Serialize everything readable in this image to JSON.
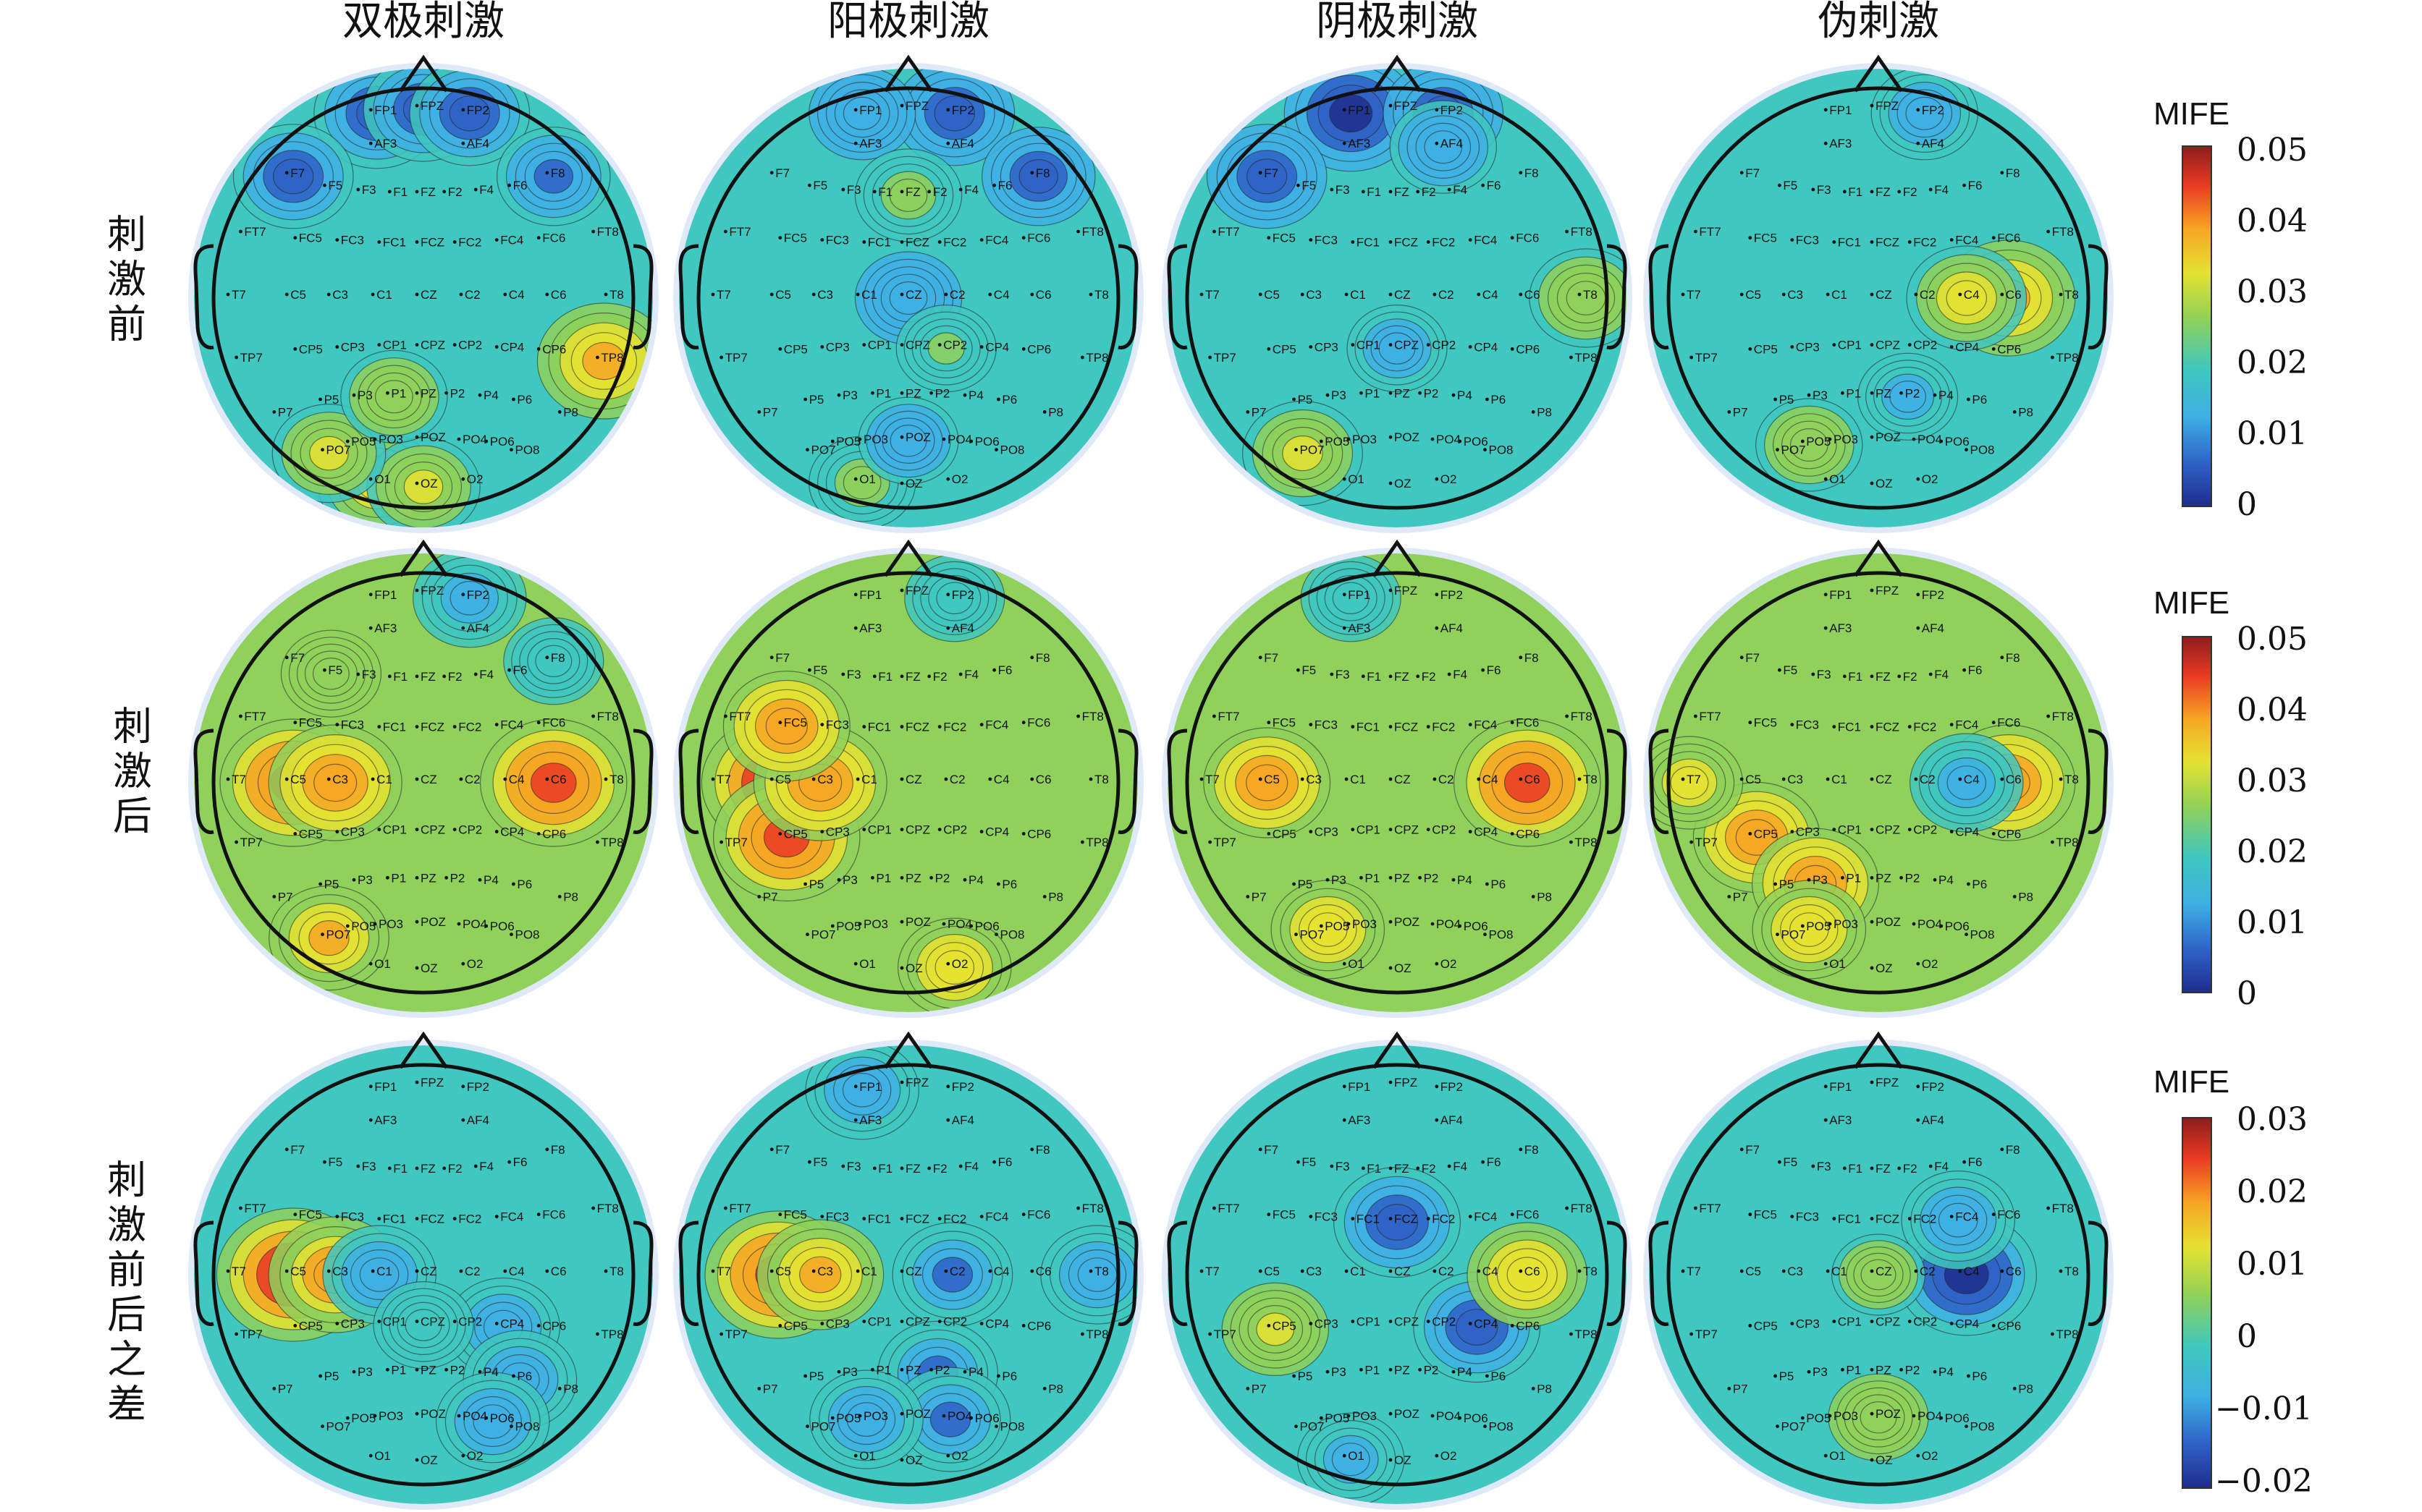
{
  "column_titles": [
    "双极刺激",
    "阳极刺激",
    "阴极刺激",
    "伪刺激"
  ],
  "row_labels": [
    "刺激前",
    "刺激后",
    "刺激前后之差"
  ],
  "colorbars": [
    {
      "title": "MIFE",
      "ticks": [
        "0.05",
        "0.04",
        "0.03",
        "0.02",
        "0.01",
        "0"
      ]
    },
    {
      "title": "MIFE",
      "ticks": [
        "0.05",
        "0.04",
        "0.03",
        "0.02",
        "0.01",
        "0"
      ]
    },
    {
      "title": "MIFE",
      "ticks": [
        "0.03",
        "0.02",
        "0.01",
        "0",
        "−0.01",
        "−0.02"
      ]
    }
  ],
  "electrodes": [
    "FP1",
    "FPZ",
    "FP2",
    "AF3",
    "AF4",
    "F7",
    "F5",
    "F3",
    "F1",
    "FZ",
    "F2",
    "F4",
    "F6",
    "F8",
    "FT7",
    "FC5",
    "FC3",
    "FC1",
    "FCZ",
    "FC2",
    "FC4",
    "FC6",
    "FT8",
    "T7",
    "C5",
    "C3",
    "C1",
    "CZ",
    "C2",
    "C4",
    "C6",
    "T8",
    "TP7",
    "CP5",
    "CP3",
    "CP1",
    "CPZ",
    "CP2",
    "CP4",
    "CP6",
    "TP8",
    "P7",
    "P5",
    "P3",
    "P1",
    "PZ",
    "P2",
    "P4",
    "P6",
    "P8",
    "PO7",
    "PO5",
    "PO3",
    "POZ",
    "PO4",
    "PO6",
    "PO8",
    "O1",
    "OZ",
    "O2"
  ],
  "colors": {
    "colormap": [
      "#1e2d8c",
      "#2f62c6",
      "#3fb0e3",
      "#3fc7c0",
      "#8fd15a",
      "#e5e230",
      "#f6a623",
      "#ea3a24",
      "#8e1c1c"
    ],
    "outline": "#111111",
    "halo": "#dfe9f7"
  },
  "maps": [
    {
      "base": 0.38,
      "blobs": [
        {
          "e": "FP1",
          "a": -0.3
        },
        {
          "e": "F7",
          "a": -0.25
        },
        {
          "e": "FPZ",
          "a": -0.25
        },
        {
          "e": "FP2",
          "a": -0.25
        },
        {
          "e": "F8",
          "a": -0.2
        },
        {
          "e": "O1",
          "a": 0.25
        },
        {
          "e": "OZ",
          "a": 0.2
        },
        {
          "e": "PO7",
          "a": 0.2
        },
        {
          "e": "TP8",
          "a": 0.35
        },
        {
          "e": "P1",
          "a": 0.15
        }
      ]
    },
    {
      "base": 0.34,
      "blobs": [
        {
          "e": "FP2",
          "a": -0.25
        },
        {
          "e": "F8",
          "a": -0.2
        },
        {
          "e": "FP1",
          "a": -0.15
        },
        {
          "e": "CZ",
          "a": -0.15
        },
        {
          "e": "FZ",
          "a": 0.15
        },
        {
          "e": "CP2",
          "a": 0.1
        },
        {
          "e": "O1",
          "a": 0.15
        },
        {
          "e": "POZ",
          "a": -0.1
        }
      ]
    },
    {
      "base": 0.36,
      "blobs": [
        {
          "e": "FP1",
          "a": -0.35
        },
        {
          "e": "F7",
          "a": -0.25
        },
        {
          "e": "FP2",
          "a": -0.25
        },
        {
          "e": "AF4",
          "a": -0.15
        },
        {
          "e": "T8",
          "a": 0.2
        },
        {
          "e": "PO7",
          "a": 0.25
        },
        {
          "e": "CPZ",
          "a": -0.1
        }
      ]
    },
    {
      "base": 0.38,
      "blobs": [
        {
          "e": "C6",
          "a": 0.35
        },
        {
          "e": "C4",
          "a": 0.25
        },
        {
          "e": "FP2",
          "a": -0.15
        },
        {
          "e": "PO5",
          "a": 0.15
        },
        {
          "e": "P2",
          "a": -0.1
        }
      ]
    },
    {
      "base": 0.45,
      "blobs": [
        {
          "e": "C5",
          "a": 0.45
        },
        {
          "e": "C3",
          "a": 0.35
        },
        {
          "e": "C6",
          "a": 0.45
        },
        {
          "e": "FP2",
          "a": -0.2
        },
        {
          "e": "F8",
          "a": -0.1
        },
        {
          "e": "PO7",
          "a": 0.25
        },
        {
          "e": "F5",
          "a": 0.1
        }
      ]
    },
    {
      "base": 0.45,
      "blobs": [
        {
          "e": "C5",
          "a": 0.5
        },
        {
          "e": "CP5",
          "a": 0.45
        },
        {
          "e": "C3",
          "a": 0.35
        },
        {
          "e": "FC5",
          "a": 0.3
        },
        {
          "e": "O2",
          "a": 0.2
        },
        {
          "e": "FP2",
          "a": -0.1
        }
      ]
    },
    {
      "base": 0.45,
      "blobs": [
        {
          "e": "C6",
          "a": 0.45
        },
        {
          "e": "C5",
          "a": 0.3
        },
        {
          "e": "PO5",
          "a": 0.2
        },
        {
          "e": "FP1",
          "a": -0.1
        }
      ]
    },
    {
      "base": 0.45,
      "blobs": [
        {
          "e": "CP5",
          "a": 0.3
        },
        {
          "e": "P3",
          "a": 0.3
        },
        {
          "e": "C6",
          "a": 0.35
        },
        {
          "e": "PO5",
          "a": 0.2
        },
        {
          "e": "C4",
          "a": -0.2
        },
        {
          "e": "T7",
          "a": 0.15
        }
      ]
    },
    {
      "base": 0.42,
      "blobs": [
        {
          "e": "C5",
          "a": 0.5
        },
        {
          "e": "C3",
          "a": 0.35
        },
        {
          "e": "C1",
          "a": -0.2
        },
        {
          "e": "CP4",
          "a": -0.2
        },
        {
          "e": "P6",
          "a": -0.2
        },
        {
          "e": "PO6",
          "a": -0.2
        },
        {
          "e": "CPZ",
          "a": -0.1
        }
      ]
    },
    {
      "base": 0.42,
      "blobs": [
        {
          "e": "C5",
          "a": 0.45
        },
        {
          "e": "C3",
          "a": 0.3
        },
        {
          "e": "FP1",
          "a": -0.2
        },
        {
          "e": "C2",
          "a": -0.25
        },
        {
          "e": "P2",
          "a": -0.25
        },
        {
          "e": "PO4",
          "a": -0.25
        },
        {
          "e": "PO3",
          "a": -0.2
        },
        {
          "e": "T8",
          "a": -0.2
        }
      ]
    },
    {
      "base": 0.42,
      "blobs": [
        {
          "e": "FCZ",
          "a": -0.3
        },
        {
          "e": "CP4",
          "a": -0.3
        },
        {
          "e": "C6",
          "a": 0.25
        },
        {
          "e": "O1",
          "a": -0.15
        },
        {
          "e": "CP5",
          "a": 0.15
        }
      ]
    },
    {
      "base": 0.42,
      "blobs": [
        {
          "e": "C4",
          "a": -0.4
        },
        {
          "e": "FC4",
          "a": -0.2
        },
        {
          "e": "CZ",
          "a": 0.05
        },
        {
          "e": "POZ",
          "a": 0.1
        }
      ]
    }
  ]
}
